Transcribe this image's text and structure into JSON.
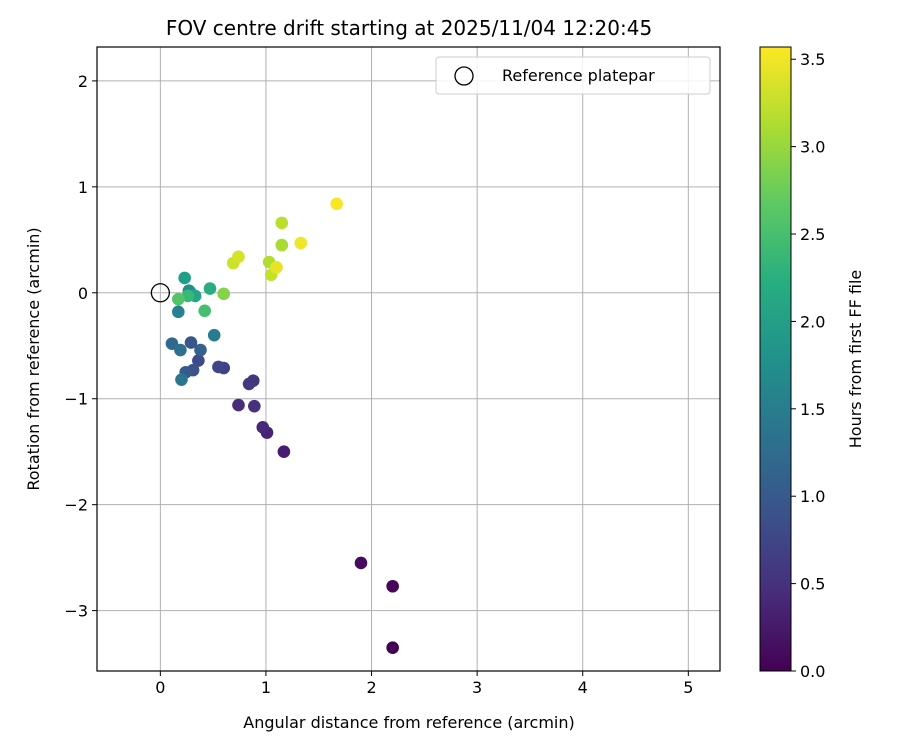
{
  "chart_data": {
    "type": "scatter",
    "title": "FOV centre drift starting at 2025/11/04 12:20:45",
    "xlabel": "Angular distance from reference (arcmin)",
    "ylabel": "Rotation from reference (arcmin)",
    "xlim": [
      -0.6,
      5.3
    ],
    "ylim": [
      -3.57,
      2.32
    ],
    "xticks": [
      0,
      1,
      2,
      3,
      4,
      5
    ],
    "xtick_labels": [
      "0",
      "1",
      "2",
      "3",
      "4",
      "5"
    ],
    "yticks": [
      2,
      1,
      0,
      -1,
      -2,
      -3
    ],
    "ytick_labels": [
      "2",
      "1",
      "0",
      "−1",
      "−2",
      "−3"
    ],
    "grid": true,
    "legend": {
      "position": "top-right",
      "entries": [
        {
          "label": "Reference platepar",
          "marker": "open-circle",
          "x": 0,
          "y": 0
        }
      ]
    },
    "colorbar": {
      "label": "Hours from first FF file",
      "colormap": "viridis",
      "range": [
        0,
        3.57
      ],
      "ticks": [
        0.0,
        0.5,
        1.0,
        1.5,
        2.0,
        2.5,
        3.0,
        3.5
      ],
      "tick_labels": [
        "0.0",
        "0.5",
        "1.0",
        "1.5",
        "2.0",
        "2.5",
        "3.0",
        "3.5"
      ]
    },
    "points": [
      {
        "x": 2.2,
        "y": -3.35,
        "c": 0.0
      },
      {
        "x": 2.2,
        "y": -2.77,
        "c": 0.05
      },
      {
        "x": 1.9,
        "y": -2.55,
        "c": 0.1
      },
      {
        "x": 1.17,
        "y": -1.5,
        "c": 0.3
      },
      {
        "x": 1.01,
        "y": -1.32,
        "c": 0.35
      },
      {
        "x": 0.97,
        "y": -1.27,
        "c": 0.4
      },
      {
        "x": 0.74,
        "y": -1.06,
        "c": 0.45
      },
      {
        "x": 0.89,
        "y": -1.07,
        "c": 0.5
      },
      {
        "x": 0.88,
        "y": -0.83,
        "c": 0.55
      },
      {
        "x": 0.84,
        "y": -0.86,
        "c": 0.6
      },
      {
        "x": 0.6,
        "y": -0.71,
        "c": 0.7
      },
      {
        "x": 0.55,
        "y": -0.7,
        "c": 0.75
      },
      {
        "x": 0.36,
        "y": -0.64,
        "c": 0.8
      },
      {
        "x": 0.31,
        "y": -0.73,
        "c": 0.9
      },
      {
        "x": 0.29,
        "y": -0.47,
        "c": 0.95
      },
      {
        "x": 0.24,
        "y": -0.75,
        "c": 1.0
      },
      {
        "x": 0.38,
        "y": -0.54,
        "c": 1.1
      },
      {
        "x": 0.11,
        "y": -0.48,
        "c": 1.2
      },
      {
        "x": 0.19,
        "y": -0.54,
        "c": 1.3
      },
      {
        "x": 0.2,
        "y": -0.82,
        "c": 1.4
      },
      {
        "x": 0.51,
        "y": -0.4,
        "c": 1.5
      },
      {
        "x": 0.17,
        "y": -0.18,
        "c": 1.6
      },
      {
        "x": 0.27,
        "y": 0.02,
        "c": 1.7
      },
      {
        "x": 0.28,
        "y": 0.01,
        "c": 1.8
      },
      {
        "x": 0.23,
        "y": 0.14,
        "c": 2.0
      },
      {
        "x": 0.33,
        "y": -0.03,
        "c": 2.1
      },
      {
        "x": 0.47,
        "y": 0.04,
        "c": 2.2
      },
      {
        "x": 0.26,
        "y": -0.03,
        "c": 2.4
      },
      {
        "x": 0.42,
        "y": -0.17,
        "c": 2.5
      },
      {
        "x": 0.17,
        "y": -0.06,
        "c": 2.6
      },
      {
        "x": 0.6,
        "y": -0.01,
        "c": 2.9
      },
      {
        "x": 1.15,
        "y": 0.45,
        "c": 3.1
      },
      {
        "x": 1.03,
        "y": 0.29,
        "c": 3.15
      },
      {
        "x": 1.15,
        "y": 0.66,
        "c": 3.2
      },
      {
        "x": 1.05,
        "y": 0.17,
        "c": 3.25
      },
      {
        "x": 0.69,
        "y": 0.28,
        "c": 3.3
      },
      {
        "x": 0.74,
        "y": 0.34,
        "c": 3.35
      },
      {
        "x": 1.1,
        "y": 0.24,
        "c": 3.45
      },
      {
        "x": 1.33,
        "y": 0.47,
        "c": 3.5
      },
      {
        "x": 1.67,
        "y": 0.84,
        "c": 3.55
      }
    ]
  }
}
